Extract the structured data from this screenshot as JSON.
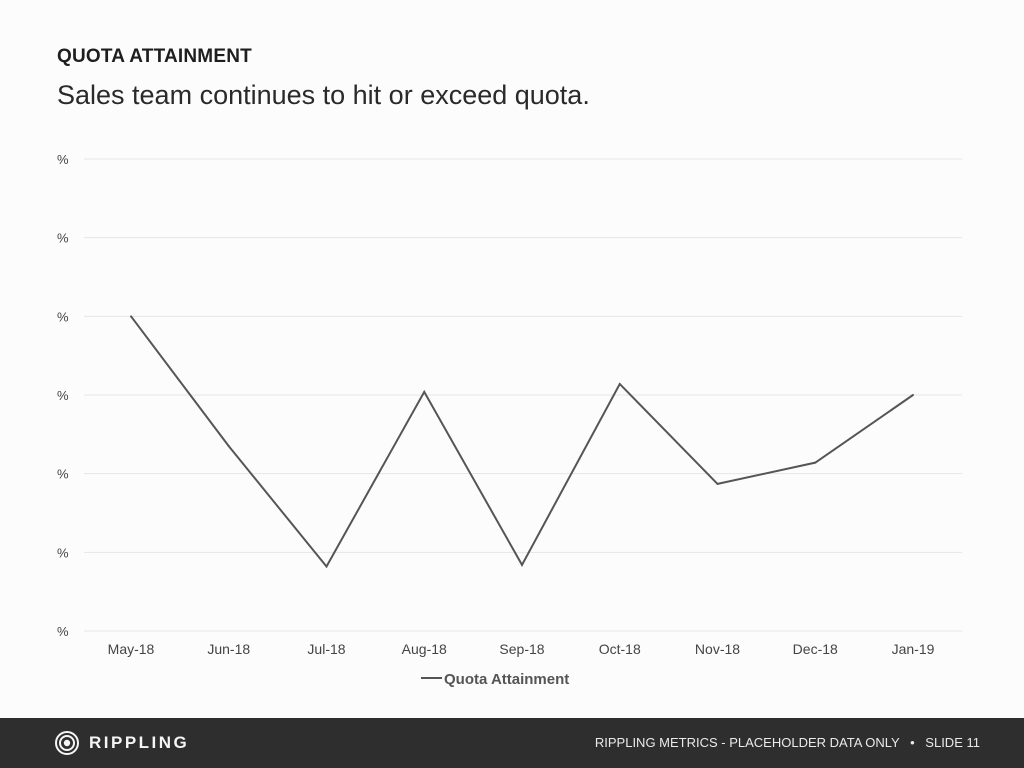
{
  "slide": {
    "kicker": "QUOTA ATTAINMENT",
    "title": "Sales team continues to hit or exceed quota."
  },
  "footer": {
    "brand": "RIPPLING",
    "note": "RIPPLING METRICS - PLACEHOLDER DATA ONLY",
    "separator": "•",
    "slide_label": "SLIDE",
    "slide_number": "11"
  },
  "colors": {
    "background": "#fdfcfd",
    "line": "#555555",
    "grid": "#e6e6e6",
    "footer_bg": "#2e2e2e"
  },
  "icons": {
    "logo": "rippling-logo-icon"
  },
  "chart_data": {
    "type": "line",
    "categories": [
      "May-18",
      "Jun-18",
      "Jul-18",
      "Aug-18",
      "Sep-18",
      "Oct-18",
      "Nov-18",
      "Dec-18",
      "Jan-19"
    ],
    "y_tick_labels": [
      "%",
      "%",
      "%",
      "%",
      "%",
      "%",
      "%"
    ],
    "y_tick_count": 7,
    "ylim": [
      0,
      6
    ],
    "series": [
      {
        "name": "Quota Attainment",
        "values": [
          4.0,
          2.35,
          0.82,
          3.04,
          0.84,
          3.14,
          1.87,
          2.14,
          3.0
        ]
      }
    ],
    "legend_position": "bottom-left",
    "grid": true,
    "xlabel": "",
    "ylabel": ""
  }
}
